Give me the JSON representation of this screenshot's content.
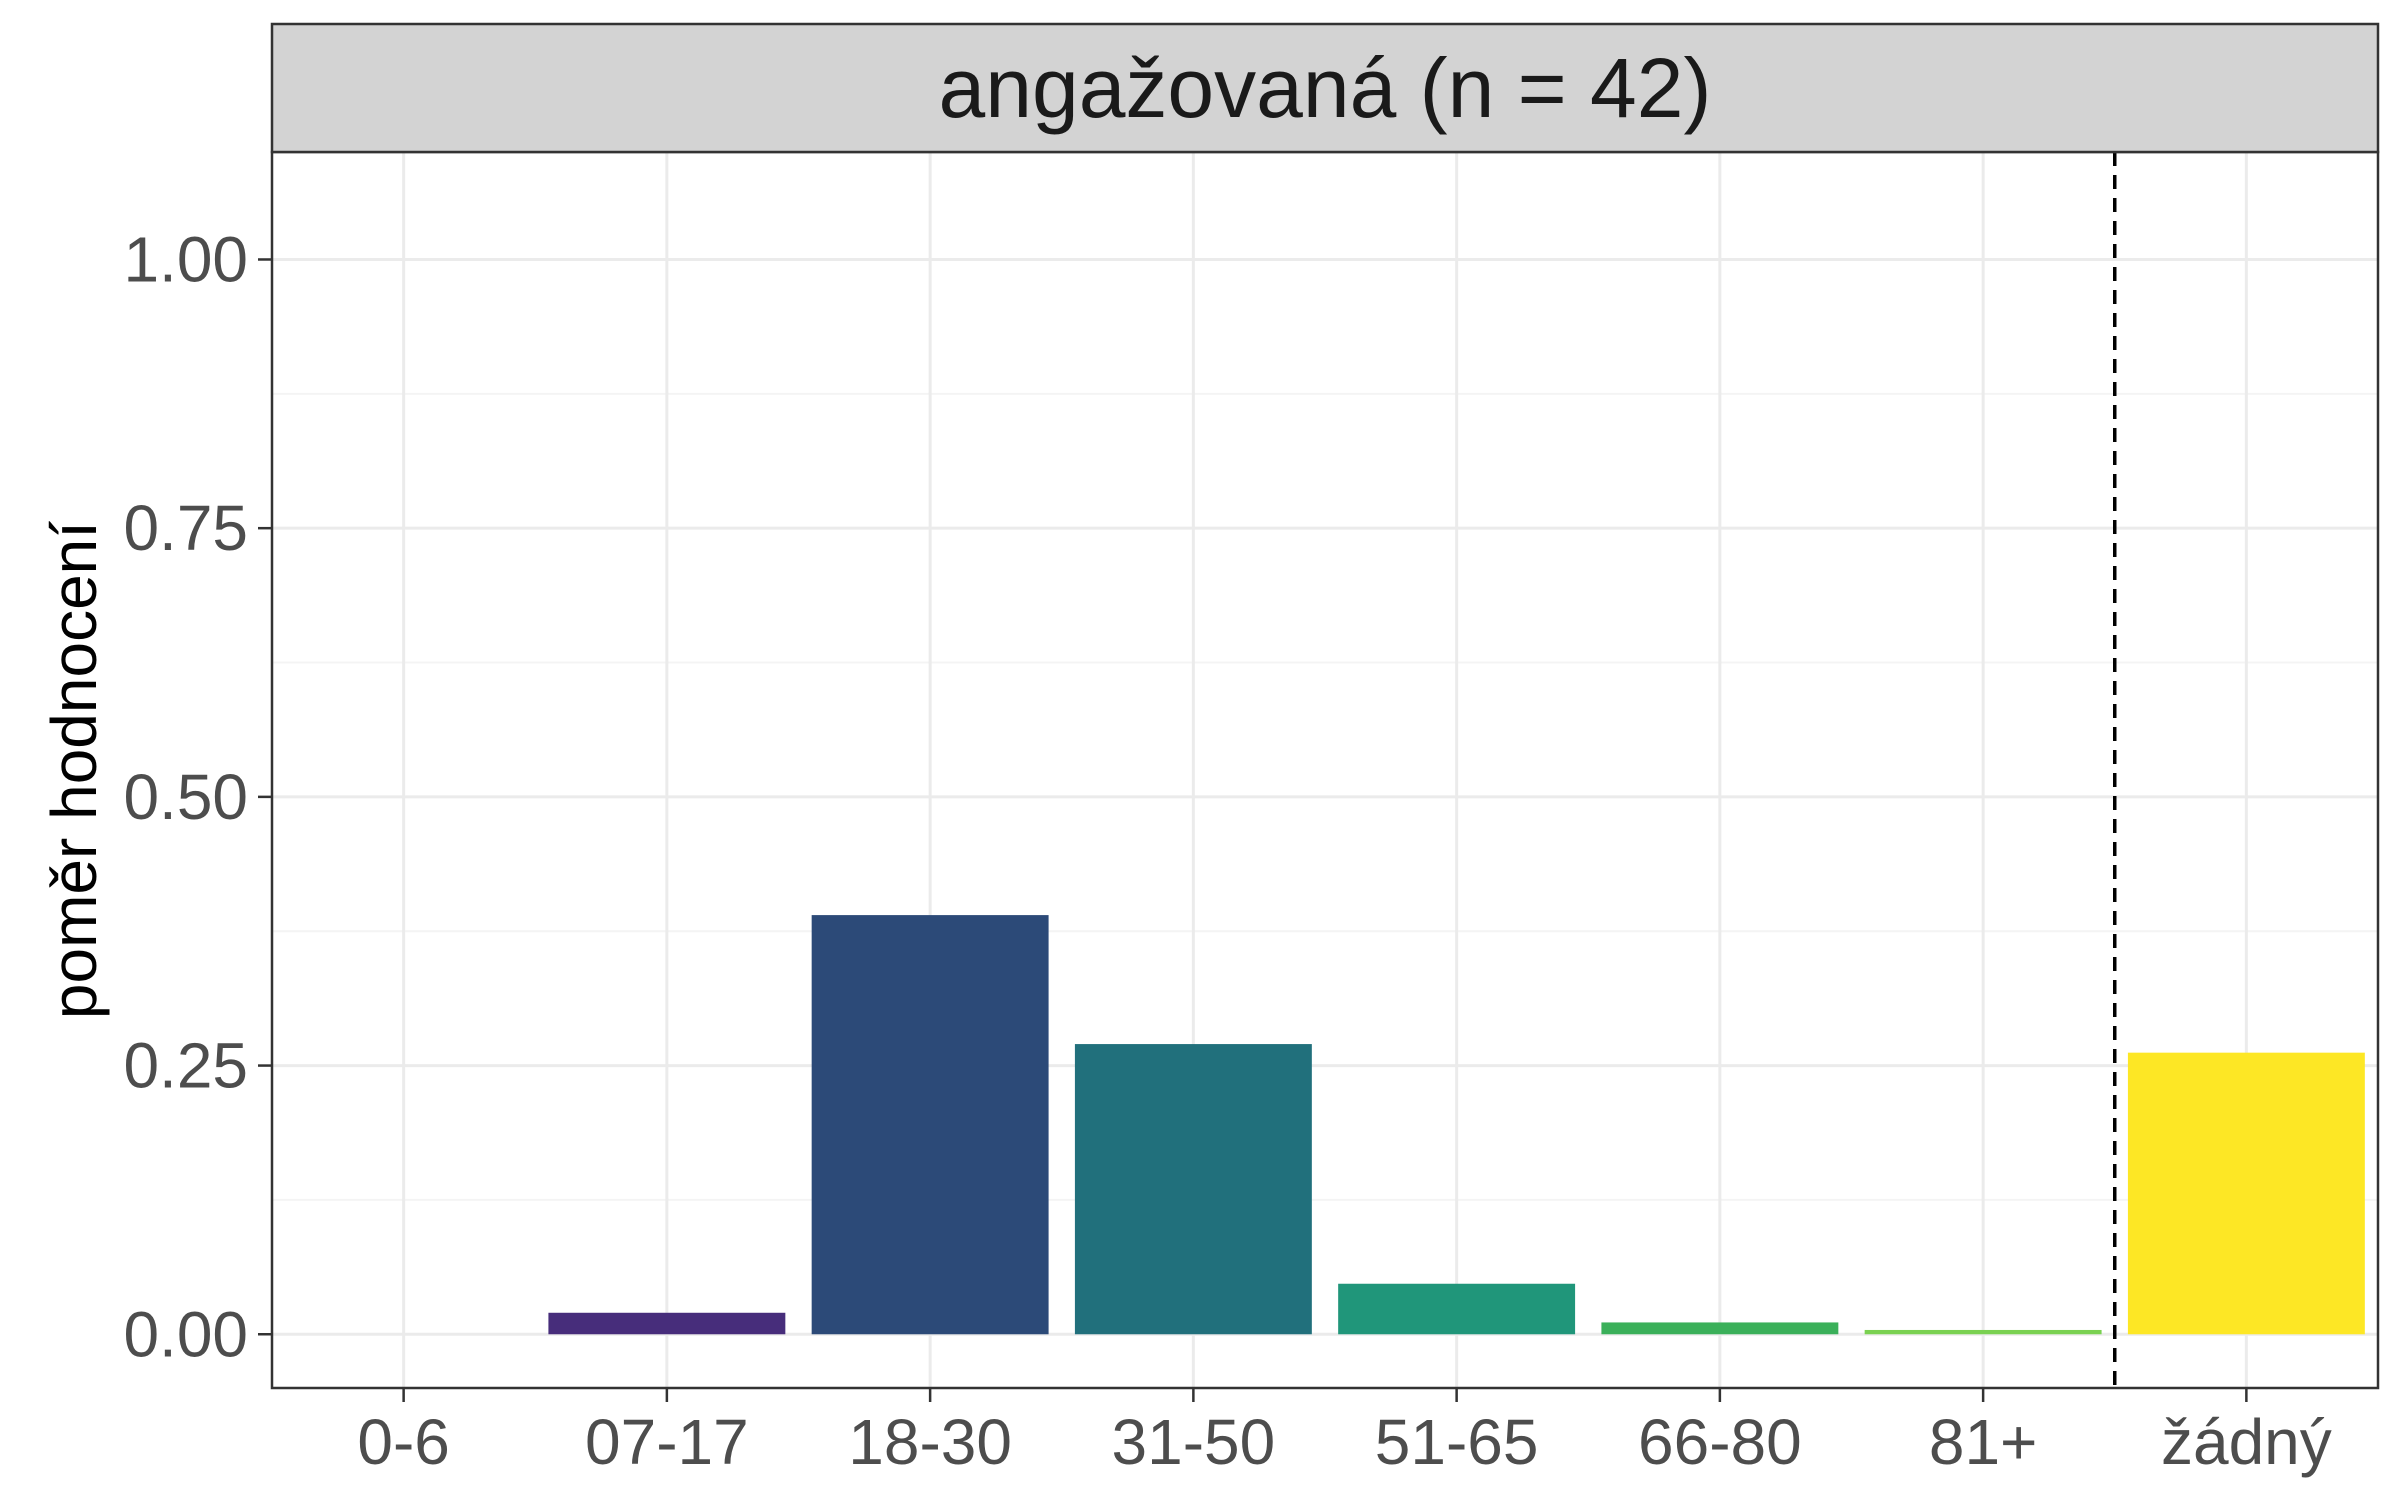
{
  "chart_data": {
    "type": "bar",
    "facet_title": "angažovaná (n = 42)",
    "xlabel": "",
    "ylabel": "poměr hodnocení",
    "ylim": [
      -0.05,
      1.1
    ],
    "yticks": [
      0.0,
      0.25,
      0.5,
      0.75,
      1.0
    ],
    "ytick_labels": [
      "0.00",
      "0.25",
      "0.50",
      "0.75",
      "1.00"
    ],
    "categories": [
      "0-6",
      "07-17",
      "18-30",
      "31-50",
      "51-65",
      "66-80",
      "81+",
      "žádný"
    ],
    "values": [
      0.0,
      0.02,
      0.39,
      0.27,
      0.047,
      0.011,
      0.004,
      0.262
    ],
    "colors": [
      "#440154",
      "#472D7B",
      "#2C4A78",
      "#21707C",
      "#20967A",
      "#3BB05A",
      "#7AD151",
      "#FDE725"
    ],
    "reference_line": {
      "between_categories": [
        "81+",
        "žádný"
      ],
      "style": "dashed",
      "color": "#000000"
    },
    "grid": true,
    "legend": "none",
    "theme": {
      "panel_border": "#333333",
      "strip_fill": "#d3d3d3",
      "grid_major": "#ebebeb",
      "grid_minor": "#f4f4f4",
      "tick_color": "#333333"
    }
  }
}
